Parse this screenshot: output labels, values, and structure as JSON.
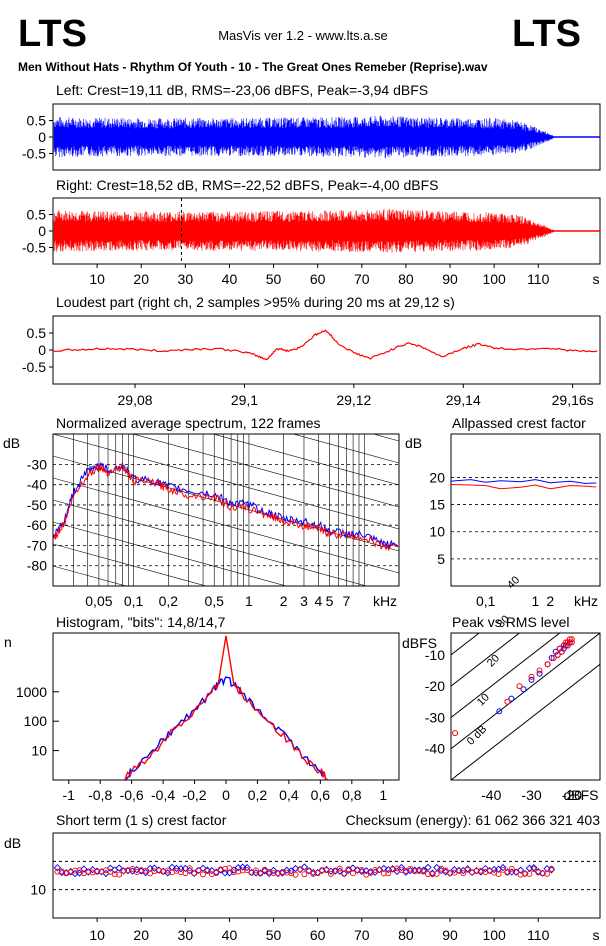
{
  "header": {
    "logo_left": "LTS",
    "logo_right": "LTS",
    "app_title": "MasVis ver 1.2 - www.lts.a.se",
    "track_title": "Men Without Hats - Rhythm Of Youth  - 10 - The Great Ones Remeber (Reprise).wav"
  },
  "colors": {
    "left": "#0000ff",
    "right": "#ff0000",
    "frame": "#000000",
    "grid": "#000000"
  },
  "chart_data": [
    {
      "id": "left_waveform",
      "type": "area",
      "title": "Left: Crest=19,11 dB, RMS=-23,06 dBFS, Peak=-3,94 dBFS",
      "ylim": [
        -1,
        1
      ],
      "yticks": [
        "0.5",
        "0",
        "-0.5"
      ],
      "ytick_values": [
        0.5,
        0,
        -0.5
      ],
      "xlim": [
        0,
        124
      ],
      "duration_s": 113.5,
      "envelope": [
        [
          0,
          0.62
        ],
        [
          5,
          0.6
        ],
        [
          20,
          0.58
        ],
        [
          40,
          0.58
        ],
        [
          60,
          0.6
        ],
        [
          70,
          0.62
        ],
        [
          75,
          0.65
        ],
        [
          85,
          0.6
        ],
        [
          95,
          0.58
        ],
        [
          100,
          0.57
        ],
        [
          105,
          0.5
        ],
        [
          108,
          0.38
        ],
        [
          110,
          0.26
        ],
        [
          112,
          0.15
        ],
        [
          113.5,
          0.04
        ]
      ],
      "color": "#0000ff"
    },
    {
      "id": "right_waveform",
      "type": "area",
      "title": "Right: Crest=18,52 dB, RMS=-22,52 dBFS, Peak=-4,00 dBFS",
      "ylim": [
        -1,
        1
      ],
      "yticks": [
        "0.5",
        "0",
        "-0.5"
      ],
      "ytick_values": [
        0.5,
        0,
        -0.5
      ],
      "xlim": [
        0,
        124
      ],
      "xticks": [
        10,
        20,
        30,
        40,
        50,
        60,
        70,
        80,
        90,
        100,
        110
      ],
      "xtick_labels": [
        "10",
        "20",
        "30",
        "40",
        "50",
        "60",
        "70",
        "80",
        "90",
        "100",
        "110"
      ],
      "xunit": "s",
      "marker_s": 29.12,
      "envelope": [
        [
          0,
          0.63
        ],
        [
          5,
          0.62
        ],
        [
          20,
          0.6
        ],
        [
          40,
          0.6
        ],
        [
          60,
          0.62
        ],
        [
          70,
          0.64
        ],
        [
          75,
          0.68
        ],
        [
          85,
          0.62
        ],
        [
          95,
          0.6
        ],
        [
          100,
          0.58
        ],
        [
          105,
          0.5
        ],
        [
          108,
          0.38
        ],
        [
          110,
          0.25
        ],
        [
          112,
          0.14
        ],
        [
          113.5,
          0.03
        ]
      ],
      "color": "#ff0000"
    },
    {
      "id": "loudest_part",
      "type": "line",
      "title": "Loudest part (right ch, 2 samples >95% during 20 ms at 29,12 s)",
      "ylim": [
        -1,
        1
      ],
      "yticks": [
        "0.5",
        "0",
        "-0.5"
      ],
      "ytick_values": [
        0.5,
        0,
        -0.5
      ],
      "xlim": [
        29.065,
        29.165
      ],
      "xticks": [
        29.08,
        29.1,
        29.12,
        29.14,
        29.16
      ],
      "xtick_labels": [
        "29,08",
        "29,1",
        "29,12",
        "29,14",
        "29,16s"
      ],
      "x": [
        29.065,
        29.07,
        29.075,
        29.08,
        29.085,
        29.09,
        29.095,
        29.1,
        29.102,
        29.104,
        29.106,
        29.108,
        29.11,
        29.113,
        29.115,
        29.117,
        29.12,
        29.123,
        29.126,
        29.13,
        29.133,
        29.136,
        29.14,
        29.143,
        29.146,
        29.15,
        29.155,
        29.16,
        29.165
      ],
      "y": [
        -0.02,
        0.01,
        0.04,
        0.02,
        -0.03,
        0.02,
        0.04,
        -0.06,
        -0.15,
        -0.28,
        0.04,
        -0.02,
        0.06,
        0.45,
        0.58,
        0.2,
        -0.08,
        -0.25,
        -0.05,
        0.22,
        0.05,
        -0.2,
        0.05,
        0.18,
        0.05,
        0.02,
        0.06,
        -0.02,
        -0.06
      ],
      "color": "#ff0000"
    },
    {
      "id": "spectrum",
      "type": "line",
      "title": "Normalized average spectrum, 122 frames",
      "ylabel": "dB",
      "xunit": "kHz",
      "x_scale": "log",
      "xlim": [
        0.02,
        20
      ],
      "ylim": [
        -90,
        -15
      ],
      "yticks": [
        -30,
        -40,
        -50,
        -60,
        -70,
        -80
      ],
      "ytick_labels": [
        "-30",
        "-40",
        "-50",
        "-60",
        "-70",
        "-80"
      ],
      "xticks": [
        0.05,
        0.1,
        0.2,
        0.5,
        1,
        2,
        3,
        4,
        5,
        7
      ],
      "xtick_labels": [
        "0,05",
        "0,1",
        "0,2",
        "0,5",
        "1",
        "2",
        "3",
        "4",
        "5",
        "7"
      ],
      "series": [
        {
          "x": [
            0.02,
            0.025,
            0.03,
            0.04,
            0.05,
            0.06,
            0.08,
            0.1,
            0.15,
            0.2,
            0.3,
            0.5,
            0.7,
            1,
            1.5,
            2,
            3,
            4,
            5,
            7,
            10,
            14,
            20
          ],
          "values": [
            -66,
            -58,
            -44,
            -33,
            -30,
            -33,
            -31,
            -37,
            -38,
            -41,
            -43,
            -45,
            -49,
            -50,
            -54,
            -57,
            -58,
            -60,
            -63,
            -64,
            -65,
            -69,
            -70
          ],
          "color": "#0000ff"
        },
        {
          "x": [
            0.02,
            0.025,
            0.03,
            0.04,
            0.05,
            0.06,
            0.08,
            0.1,
            0.15,
            0.2,
            0.3,
            0.5,
            0.7,
            1,
            1.5,
            2,
            3,
            4,
            5,
            7,
            10,
            14,
            20
          ],
          "values": [
            -67,
            -59,
            -46,
            -35,
            -31,
            -34,
            -31,
            -38,
            -39,
            -42,
            -45,
            -46,
            -51,
            -52,
            -55,
            -58,
            -60,
            -62,
            -64,
            -65,
            -66,
            -70,
            -71
          ],
          "color": "#ff0000"
        }
      ]
    },
    {
      "id": "allpassed_crest",
      "type": "line",
      "title": "Allpassed crest factor",
      "ylabel": "dB",
      "xunit": "kHz",
      "x_scale": "log",
      "xlim": [
        0.02,
        20
      ],
      "ylim": [
        0,
        28
      ],
      "yticks": [
        20,
        15,
        10,
        5
      ],
      "ytick_labels": [
        "20",
        "15",
        "10",
        "5"
      ],
      "xticks": [
        0.1,
        1,
        2
      ],
      "xtick_labels": [
        "0,1",
        "1",
        "2"
      ],
      "series": [
        {
          "x": [
            0.02,
            0.05,
            0.1,
            0.2,
            0.5,
            1,
            2,
            5,
            10,
            20
          ],
          "values": [
            19.3,
            19.6,
            19.1,
            19.4,
            19.2,
            19.6,
            19.0,
            19.3,
            18.9,
            19.0
          ],
          "color": "#0000ff"
        },
        {
          "x": [
            0.02,
            0.05,
            0.1,
            0.2,
            0.5,
            1,
            2,
            5,
            10,
            20
          ],
          "values": [
            18.7,
            18.6,
            18.5,
            17.9,
            18.2,
            18.6,
            17.9,
            18.5,
            18.4,
            18.2
          ],
          "color": "#ff0000"
        }
      ]
    },
    {
      "id": "histogram",
      "type": "bar",
      "title": "Histogram, \"bits\": 14,8/14,7",
      "ylabel": "n",
      "y_scale": "log",
      "ylim": [
        1,
        100000
      ],
      "xlim": [
        -1.1,
        1.1
      ],
      "yticks": [
        1000,
        100,
        10
      ],
      "ytick_labels": [
        "1000",
        "100",
        "10"
      ],
      "xticks": [
        -1,
        -0.8,
        -0.6,
        -0.4,
        -0.2,
        0,
        0.2,
        0.4,
        0.6,
        0.8,
        1
      ],
      "xtick_labels": [
        "-1",
        "-0,8",
        "-0,6",
        "-0,4",
        "-0,2",
        "0",
        "0,2",
        "0,4",
        "0,6",
        "0,8",
        "1"
      ],
      "series": [
        {
          "name": "",
          "x": [
            -0.65,
            -0.6,
            -0.5,
            -0.4,
            -0.3,
            -0.2,
            -0.1,
            -0.05,
            0,
            0.05,
            0.1,
            0.2,
            0.3,
            0.4,
            0.5,
            0.6,
            0.65
          ],
          "values": [
            1,
            2,
            6,
            25,
            80,
            250,
            900,
            1800,
            3200,
            1800,
            900,
            250,
            80,
            25,
            6,
            2,
            1
          ],
          "color": "#0000ff"
        },
        {
          "name": "",
          "x": [
            -0.65,
            -0.6,
            -0.5,
            -0.4,
            -0.3,
            -0.2,
            -0.1,
            -0.05,
            0,
            0.05,
            0.1,
            0.2,
            0.3,
            0.4,
            0.5,
            0.6,
            0.65
          ],
          "values": [
            1,
            2,
            5,
            22,
            75,
            240,
            880,
            1750,
            80000,
            1750,
            880,
            240,
            75,
            22,
            5,
            2,
            1
          ],
          "color": "#ff0000"
        }
      ]
    },
    {
      "id": "peak_vs_rms",
      "type": "scatter",
      "title": "Peak vs RMS level",
      "ylabel": "dBFS",
      "xlabel": "dBFS",
      "xlim": [
        -50,
        -13
      ],
      "ylim": [
        -50,
        -3
      ],
      "yticks": [
        -10,
        -20,
        -30,
        -40
      ],
      "ytick_labels": [
        "-10",
        "-20",
        "-30",
        "-40"
      ],
      "xticks": [
        -40,
        -30,
        -20
      ],
      "xtick_labels": [
        "-40",
        "-30",
        "-20"
      ],
      "diagonals": [
        "40",
        "30",
        "20",
        "10",
        "0 dB"
      ],
      "series": [
        {
          "x": [
            -24,
            -23,
            -22,
            -21,
            -21.5,
            -22.5,
            -20.5,
            -23.5,
            -25,
            -26,
            -28,
            -30,
            -32,
            -35,
            -38,
            -22,
            -21
          ],
          "values": [
            -9,
            -8,
            -7,
            -6,
            -7,
            -9,
            -6,
            -10,
            -11,
            -13,
            -16,
            -18,
            -21,
            -24,
            -28,
            -8,
            -7
          ],
          "color": "#0000ff"
        },
        {
          "x": [
            -23,
            -22,
            -21,
            -20.5,
            -21.5,
            -22.5,
            -20,
            -23.5,
            -24.5,
            -26,
            -28,
            -30,
            -33,
            -36,
            -49,
            -21,
            -20
          ],
          "values": [
            -8,
            -7,
            -6,
            -5,
            -6,
            -9,
            -5,
            -10,
            -11,
            -13,
            -15,
            -17,
            -20,
            -25,
            -35,
            -7,
            -6
          ],
          "color": "#ff0000"
        }
      ]
    },
    {
      "id": "short_term_crest",
      "type": "scatter",
      "title": "Short term (1 s) crest factor",
      "checksum_text": "Checksum (energy):   61 062 366 321 403",
      "ylabel": "dB",
      "xunit": "s",
      "xlim": [
        0,
        124
      ],
      "ylim": [
        0,
        30
      ],
      "yticks": [
        10
      ],
      "ytick_labels": [
        "10"
      ],
      "dashed_lines": [
        10,
        20
      ],
      "xticks": [
        10,
        20,
        30,
        40,
        50,
        60,
        70,
        80,
        90,
        100,
        110
      ],
      "xtick_labels": [
        "10",
        "20",
        "30",
        "40",
        "50",
        "60",
        "70",
        "80",
        "90",
        "100",
        "110"
      ],
      "series": [
        {
          "mean": 16.8,
          "amplitude": 1.2,
          "color": "#0000ff"
        },
        {
          "mean": 16.4,
          "amplitude": 1.2,
          "color": "#ff0000"
        }
      ]
    }
  ]
}
